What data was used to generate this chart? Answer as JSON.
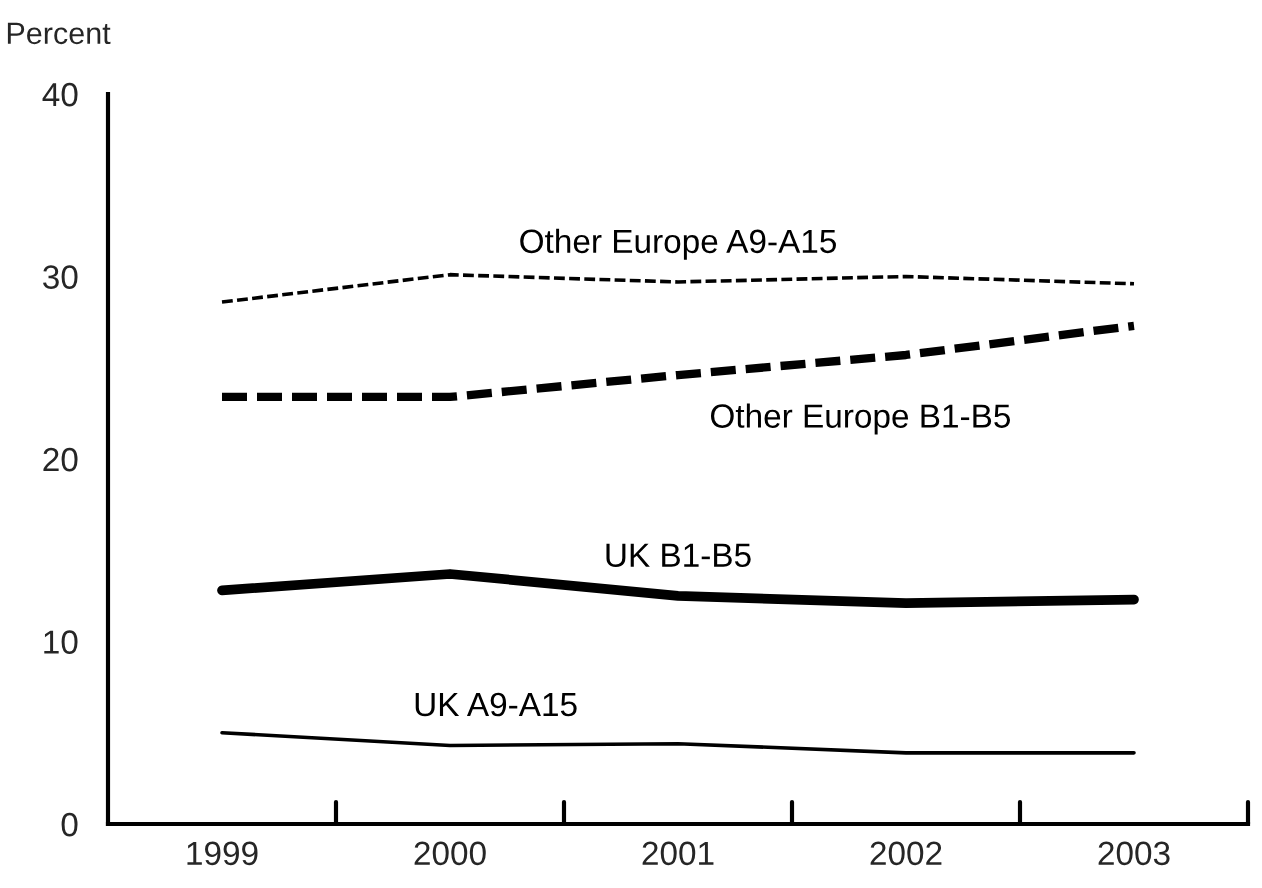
{
  "chart_data": {
    "type": "line",
    "ylabel": "Percent",
    "categories": [
      "1999",
      "2000",
      "2001",
      "2002",
      "2003"
    ],
    "series": [
      {
        "name": "Other Europe A9-A15",
        "color": "#000000",
        "line_style": "dashed",
        "values": [
          28.6,
          30.1,
          29.7,
          30.0,
          29.6
        ]
      },
      {
        "name": "Other Europe B1-B5",
        "color": "#000000",
        "line_style": "dashed",
        "values": [
          23.4,
          23.4,
          24.6,
          25.7,
          27.3
        ]
      },
      {
        "name": "UK B1-B5",
        "color": "#000000",
        "line_style": "solid",
        "values": [
          12.8,
          13.7,
          12.5,
          12.1,
          12.3
        ]
      },
      {
        "name": "UK A9-A15",
        "color": "#000000",
        "line_style": "solid",
        "values": [
          5.0,
          4.3,
          4.4,
          3.9,
          3.9
        ]
      }
    ],
    "ylim": [
      0,
      40
    ],
    "yticks": [
      0,
      10,
      20,
      30,
      40
    ],
    "grid": false,
    "legend": false,
    "marker": "none"
  }
}
